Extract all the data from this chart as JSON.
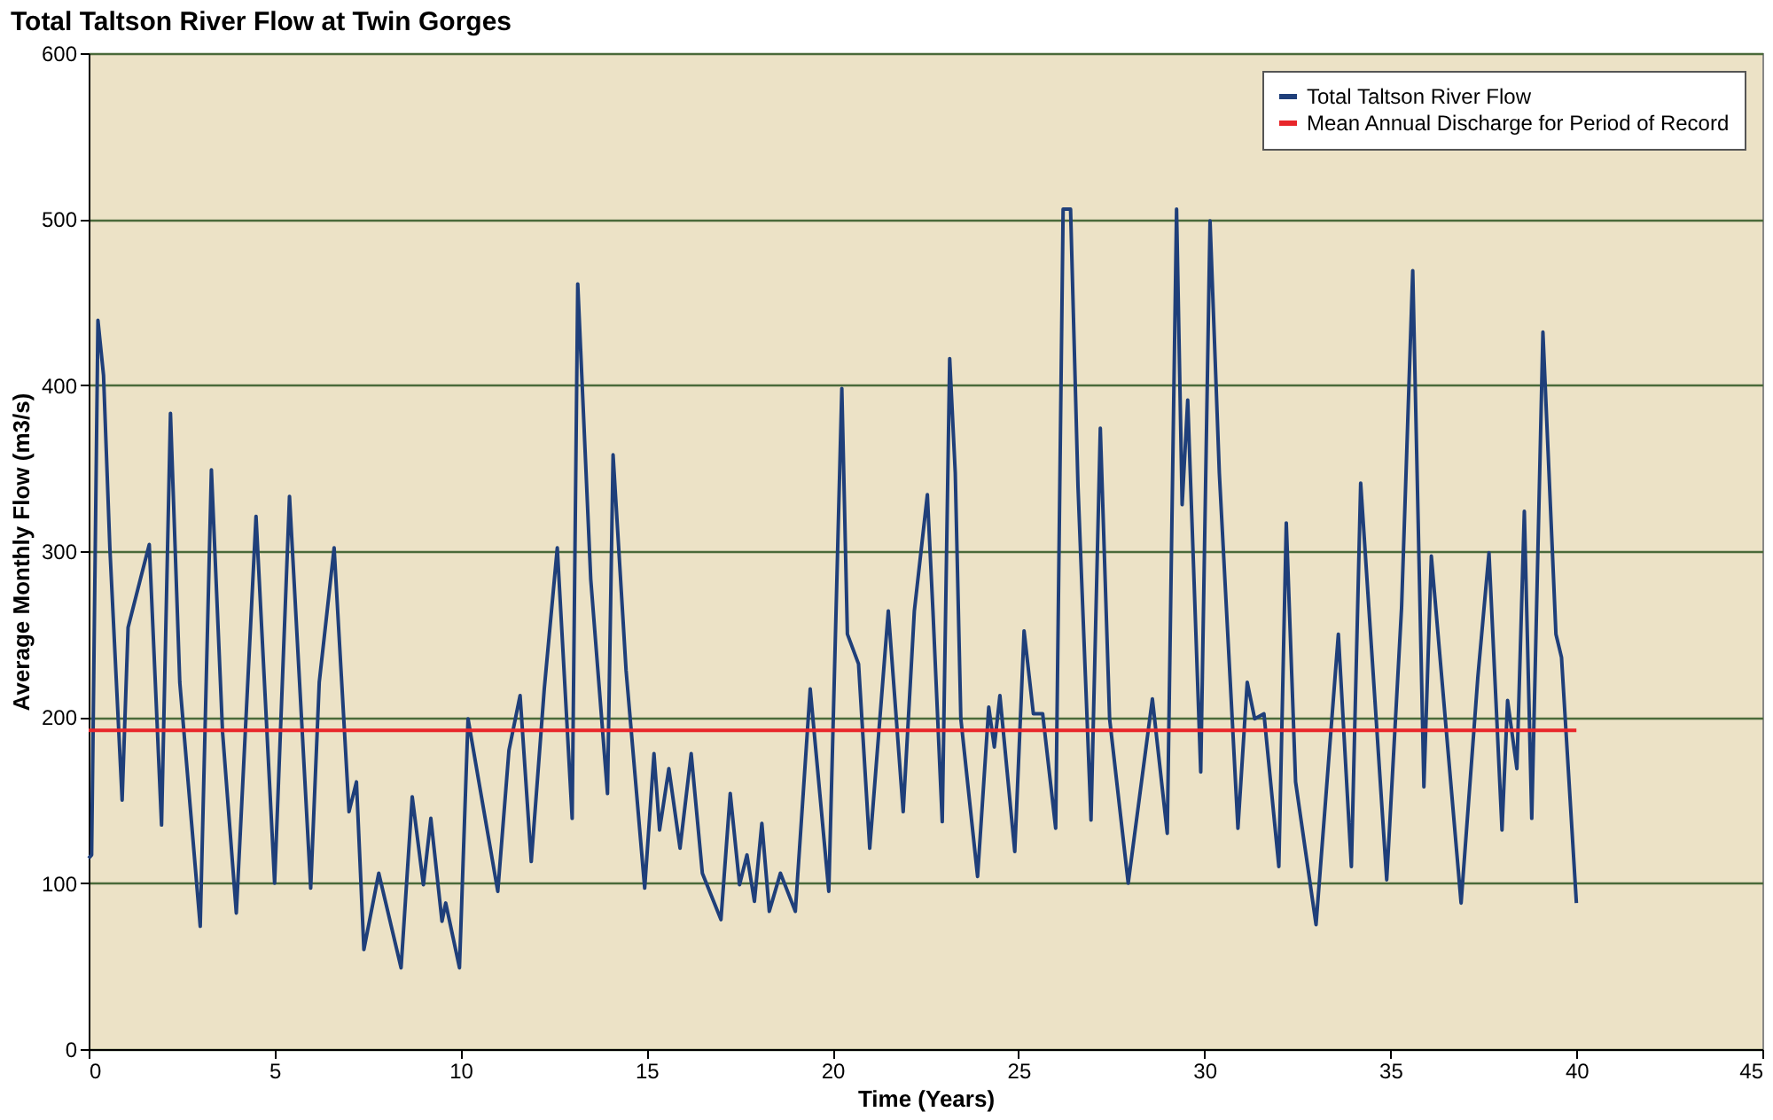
{
  "chart_data": {
    "type": "line",
    "title": "Total Taltson River Flow at Twin Gorges",
    "xlabel": "Time (Years)",
    "ylabel": "Average Monthly Flow  (m3/s)",
    "xlim": [
      0,
      45
    ],
    "xticks": [
      0,
      5,
      10,
      15,
      20,
      25,
      30,
      35,
      40,
      45
    ],
    "ylim": [
      0,
      600
    ],
    "yticks": [
      0,
      100,
      200,
      300,
      400,
      500,
      600
    ],
    "grid": "y",
    "legend": "top right",
    "marker": "none",
    "line_style": "solid",
    "series": [
      {
        "name": "Total Taltson River Flow",
        "color": "#1f3f7a",
        "x": [
          0,
          0.08,
          0.25,
          0.4,
          0.57,
          0.9,
          1.06,
          1.39,
          1.63,
          1.96,
          2.2,
          2.45,
          3.0,
          3.3,
          3.6,
          3.97,
          4.5,
          5.0,
          5.4,
          5.97,
          6.2,
          6.6,
          7.0,
          7.2,
          7.4,
          7.8,
          8.4,
          8.7,
          9.0,
          9.2,
          9.5,
          9.6,
          9.97,
          10.2,
          10.6,
          11.0,
          11.3,
          11.6,
          11.9,
          12.25,
          12.6,
          13.0,
          13.15,
          13.5,
          13.95,
          14.1,
          14.45,
          14.95,
          15.2,
          15.35,
          15.6,
          15.9,
          16.2,
          16.5,
          17.0,
          17.25,
          17.5,
          17.7,
          17.9,
          18.1,
          18.3,
          18.6,
          19.0,
          19.4,
          19.9,
          20.25,
          20.4,
          20.7,
          21.0,
          21.5,
          21.9,
          22.2,
          22.55,
          22.7,
          22.95,
          23.15,
          23.3,
          23.45,
          23.9,
          24.2,
          24.35,
          24.5,
          24.9,
          25.15,
          25.4,
          25.65,
          26.0,
          26.2,
          26.4,
          26.6,
          26.95,
          27.2,
          27.45,
          27.95,
          28.6,
          29.0,
          29.25,
          29.4,
          29.55,
          29.9,
          30.15,
          30.4,
          30.9,
          31.15,
          31.35,
          31.6,
          32.0,
          32.2,
          32.45,
          33.0,
          33.6,
          33.95,
          34.2,
          34.9,
          35.3,
          35.6,
          35.9,
          36.1,
          36.9,
          37.35,
          37.65,
          38.0,
          38.15,
          38.4,
          38.6,
          38.8,
          39.1,
          39.45,
          39.6,
          40.0
        ],
        "values": [
          115,
          117,
          439,
          406,
          302,
          150,
          254,
          283,
          304,
          135,
          383,
          221,
          74,
          349,
          191,
          82,
          321,
          100,
          333,
          97,
          221,
          302,
          143,
          161,
          60,
          106,
          49,
          152,
          99,
          139,
          77,
          88,
          49,
          199,
          147,
          95,
          180,
          213,
          113,
          217,
          302,
          139,
          461,
          283,
          154,
          358,
          228,
          97,
          178,
          132,
          169,
          121,
          178,
          106,
          78,
          154,
          99,
          117,
          89,
          136,
          83,
          106,
          83,
          217,
          95,
          398,
          250,
          232,
          121,
          264,
          143,
          264,
          334,
          264,
          137,
          416,
          347,
          199,
          104,
          206,
          182,
          213,
          119,
          252,
          202,
          202,
          133,
          506,
          506,
          339,
          138,
          374,
          199,
          100,
          211,
          130,
          506,
          328,
          391,
          167,
          499,
          347,
          133,
          221,
          199,
          202,
          110,
          317,
          161,
          75,
          250,
          110,
          341,
          102,
          266,
          469,
          158,
          297,
          88,
          224,
          299,
          132,
          210,
          169,
          324,
          139,
          432,
          250,
          236,
          88
        ]
      },
      {
        "name": "Mean Annual Discharge for Period of Record",
        "color": "#e8262a",
        "x": [
          0,
          40
        ],
        "values": [
          192,
          192
        ]
      }
    ]
  }
}
